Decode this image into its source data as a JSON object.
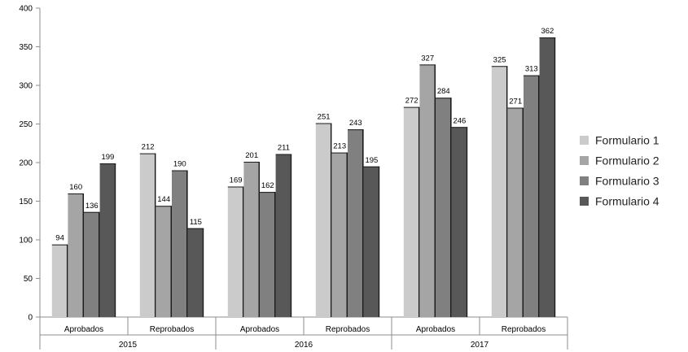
{
  "chart_data": {
    "type": "bar",
    "title": "",
    "xlabel": "",
    "ylabel": "",
    "ylim": [
      0,
      400
    ],
    "yticks": [
      0,
      50,
      100,
      150,
      200,
      250,
      300,
      350,
      400
    ],
    "grid": false,
    "legend_position": "right",
    "groups": [
      {
        "year": "2015",
        "categories": [
          "Aprobados",
          "Reprobados"
        ]
      },
      {
        "year": "2016",
        "categories": [
          "Aprobados",
          "Reprobados"
        ]
      },
      {
        "year": "2017",
        "categories": [
          "Aprobados",
          "Reprobados"
        ]
      }
    ],
    "categories": [
      "Aprobados",
      "Reprobados",
      "Aprobados",
      "Reprobados",
      "Aprobados",
      "Reprobados"
    ],
    "series": [
      {
        "name": "Formulario 1",
        "color": "#cbcbcb",
        "values": [
          94,
          212,
          169,
          251,
          272,
          325
        ]
      },
      {
        "name": "Formulario 2",
        "color": "#a5a5a5",
        "values": [
          160,
          144,
          201,
          213,
          327,
          271
        ]
      },
      {
        "name": "Formulario 3",
        "color": "#808080",
        "values": [
          136,
          190,
          162,
          243,
          284,
          313
        ]
      },
      {
        "name": "Formulario 4",
        "color": "#585858",
        "values": [
          199,
          115,
          211,
          195,
          246,
          362
        ]
      }
    ]
  }
}
